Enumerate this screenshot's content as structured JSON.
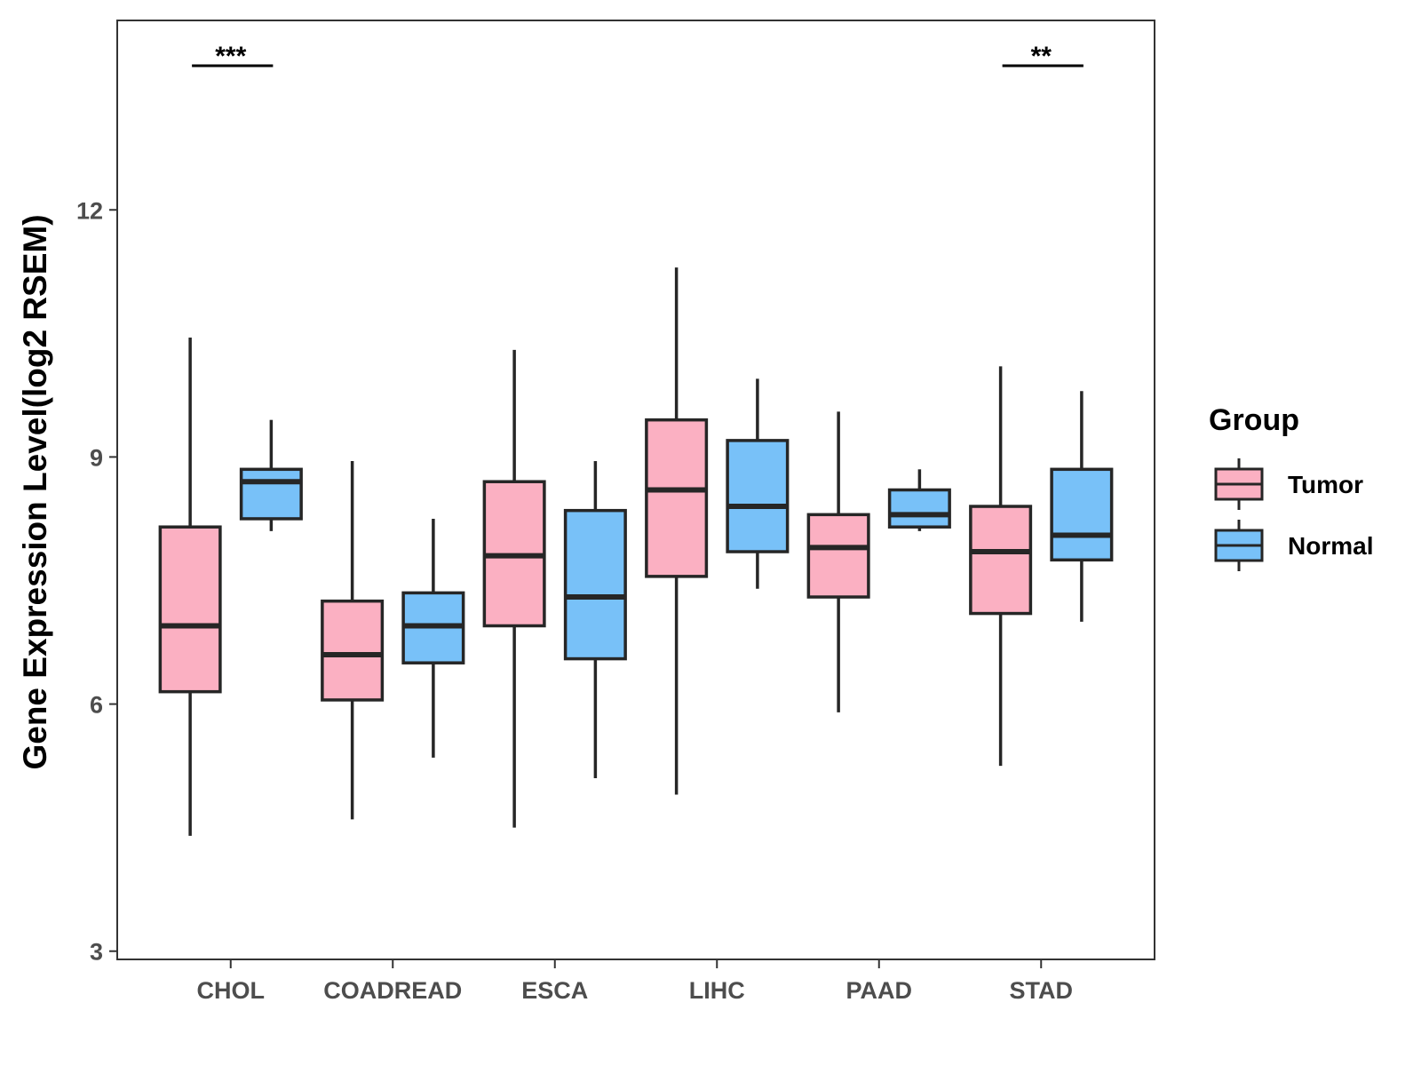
{
  "chart_data": {
    "type": "boxplot",
    "title": "",
    "xlabel": "",
    "ylabel": "Gene Expression Level(log2 RSEM)",
    "ylim": [
      2.9,
      14.3
    ],
    "yticks": [
      3,
      6,
      9,
      12
    ],
    "categories": [
      "CHOL",
      "COADREAD",
      "ESCA",
      "LIHC",
      "PAAD",
      "STAD"
    ],
    "legend": {
      "title": "Group",
      "position": "right"
    },
    "series": [
      {
        "name": "Tumor",
        "color": "#FBB0C2",
        "boxes": [
          {
            "min": 4.4,
            "q1": 6.15,
            "median": 6.95,
            "q3": 8.15,
            "max": 10.45
          },
          {
            "min": 4.6,
            "q1": 6.05,
            "median": 6.6,
            "q3": 7.25,
            "max": 8.95
          },
          {
            "min": 4.5,
            "q1": 6.95,
            "median": 7.8,
            "q3": 8.7,
            "max": 10.3
          },
          {
            "min": 4.9,
            "q1": 7.55,
            "median": 8.6,
            "q3": 9.45,
            "max": 11.3
          },
          {
            "min": 5.9,
            "q1": 7.3,
            "median": 7.9,
            "q3": 8.3,
            "max": 9.55
          },
          {
            "min": 5.25,
            "q1": 7.1,
            "median": 7.85,
            "q3": 8.4,
            "max": 10.1
          }
        ]
      },
      {
        "name": "Normal",
        "color": "#78C1F8",
        "boxes": [
          {
            "min": 8.1,
            "q1": 8.25,
            "median": 8.7,
            "q3": 8.85,
            "max": 9.45
          },
          {
            "min": 5.35,
            "q1": 6.5,
            "median": 6.95,
            "q3": 7.35,
            "max": 8.25
          },
          {
            "min": 5.1,
            "q1": 6.55,
            "median": 7.3,
            "q3": 8.35,
            "max": 8.95
          },
          {
            "min": 7.4,
            "q1": 7.85,
            "median": 8.4,
            "q3": 9.2,
            "max": 9.95
          },
          {
            "min": 8.1,
            "q1": 8.15,
            "median": 8.3,
            "q3": 8.6,
            "max": 8.85
          },
          {
            "min": 7.0,
            "q1": 7.75,
            "median": 8.05,
            "q3": 8.85,
            "max": 9.8
          }
        ]
      }
    ],
    "significance": [
      {
        "category": "CHOL",
        "label": "***"
      },
      {
        "category": "STAD",
        "label": "**"
      }
    ]
  }
}
